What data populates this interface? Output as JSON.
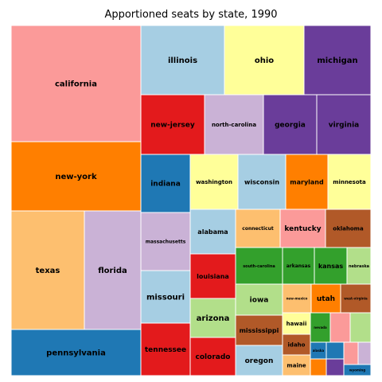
{
  "chart_data": {
    "type": "treemap",
    "title": "Apportioned seats by state, 1990",
    "items": [
      {
        "label": "california",
        "value": 52,
        "color": "#fb9a99"
      },
      {
        "label": "new-york",
        "value": 31,
        "color": "#ff7f00"
      },
      {
        "label": "texas",
        "value": 30,
        "color": "#fdbf6f"
      },
      {
        "label": "florida",
        "value": 23,
        "color": "#cab2d6"
      },
      {
        "label": "pennsylvania",
        "value": 21,
        "color": "#1f78b4"
      },
      {
        "label": "illinois",
        "value": 20,
        "color": "#a6cee3"
      },
      {
        "label": "ohio",
        "value": 19,
        "color": "#ffff99"
      },
      {
        "label": "michigan",
        "value": 16,
        "color": "#6a3d9a"
      },
      {
        "label": "new-jersey",
        "value": 13,
        "color": "#e31a1c"
      },
      {
        "label": "north-carolina",
        "value": 12,
        "color": "#cab2d6"
      },
      {
        "label": "georgia",
        "value": 11,
        "color": "#6a3d9a"
      },
      {
        "label": "virginia",
        "value": 11,
        "color": "#6a3d9a"
      },
      {
        "label": "indiana",
        "value": 10,
        "color": "#1f78b4"
      },
      {
        "label": "massachusetts",
        "value": 10,
        "color": "#cab2d6"
      },
      {
        "label": "missouri",
        "value": 9,
        "color": "#a6cee3"
      },
      {
        "label": "tennessee",
        "value": 9,
        "color": "#e31a1c"
      },
      {
        "label": "washington",
        "value": 9,
        "color": "#ffff99"
      },
      {
        "label": "wisconsin",
        "value": 9,
        "color": "#a6cee3"
      },
      {
        "label": "maryland",
        "value": 8,
        "color": "#ff7f00"
      },
      {
        "label": "minnesota",
        "value": 8,
        "color": "#ffff99"
      },
      {
        "label": "alabama",
        "value": 7,
        "color": "#a6cee3"
      },
      {
        "label": "louisiana",
        "value": 7,
        "color": "#e31a1c"
      },
      {
        "label": "arizona",
        "value": 6,
        "color": "#b2df8a"
      },
      {
        "label": "colorado",
        "value": 6,
        "color": "#e31a1c"
      },
      {
        "label": "connecticut",
        "value": 6,
        "color": "#fdbf6f"
      },
      {
        "label": "kentucky",
        "value": 6,
        "color": "#fb9a99"
      },
      {
        "label": "oklahoma",
        "value": 6,
        "color": "#b15928"
      },
      {
        "label": "south-carolina",
        "value": 6,
        "color": "#33a02c"
      },
      {
        "label": "arkansas",
        "value": 4,
        "color": "#33a02c"
      },
      {
        "label": "kansas",
        "value": 4,
        "color": "#33a02c"
      },
      {
        "label": "nebraska",
        "value": 3,
        "color": "#b2df8a"
      },
      {
        "label": "iowa",
        "value": 5,
        "color": "#b2df8a"
      },
      {
        "label": "mississippi",
        "value": 5,
        "color": "#b15928"
      },
      {
        "label": "oregon",
        "value": 5,
        "color": "#a6cee3"
      },
      {
        "label": "new-mexico",
        "value": 3,
        "color": "#fdbf6f"
      },
      {
        "label": "utah",
        "value": 3,
        "color": "#ff7f00"
      },
      {
        "label": "west-virginia",
        "value": 3,
        "color": "#b15928"
      },
      {
        "label": "hawaii",
        "value": 2,
        "color": "#ffff99"
      },
      {
        "label": "idaho",
        "value": 2,
        "color": "#b15928"
      },
      {
        "label": "maine",
        "value": 2,
        "color": "#fdbf6f"
      },
      {
        "label": "nevada",
        "value": 2,
        "color": "#33a02c"
      },
      {
        "label": "",
        "value": 2,
        "color": "#fb9a99"
      },
      {
        "label": "",
        "value": 2,
        "color": "#b2df8a"
      },
      {
        "label": "alaska",
        "value": 1,
        "color": "#1f78b4"
      },
      {
        "label": "",
        "value": 1,
        "color": "#1f78b4"
      },
      {
        "label": "",
        "value": 1,
        "color": "#fb9a99"
      },
      {
        "label": "",
        "value": 1,
        "color": "#cab2d6"
      },
      {
        "label": "",
        "value": 1,
        "color": "#ff7f00"
      },
      {
        "label": "",
        "value": 1,
        "color": "#6a3d9a"
      },
      {
        "label": "wyoming",
        "value": 1,
        "color": "#1f78b4"
      }
    ]
  }
}
